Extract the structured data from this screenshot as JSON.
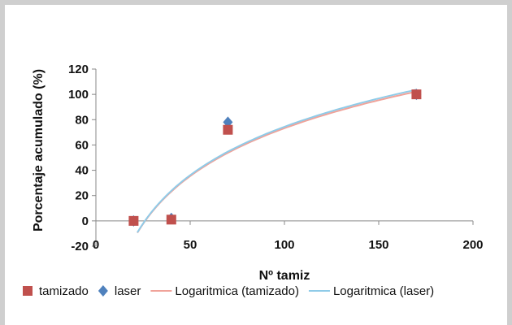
{
  "chart_data": {
    "type": "scatter",
    "xlabel": "Nº tamiz",
    "ylabel": "Porcentaje acumulado (%)",
    "xlim": [
      0,
      200
    ],
    "ylim": [
      -20,
      120
    ],
    "xticks": [
      0,
      50,
      100,
      150,
      200
    ],
    "yticks": [
      -20,
      0,
      20,
      40,
      60,
      80,
      100,
      120
    ],
    "grid": false,
    "legend_position": "bottom",
    "series": [
      {
        "name": "tamizado",
        "marker": "square",
        "color": "#c0504d",
        "points": [
          {
            "x": 20,
            "y": 0
          },
          {
            "x": 40,
            "y": 1
          },
          {
            "x": 70,
            "y": 72
          },
          {
            "x": 170,
            "y": 100
          }
        ]
      },
      {
        "name": "laser",
        "marker": "diamond",
        "color": "#4f81bd",
        "points": [
          {
            "x": 20,
            "y": 0
          },
          {
            "x": 40,
            "y": 2
          },
          {
            "x": 70,
            "y": 78
          },
          {
            "x": 170,
            "y": 100
          }
        ]
      },
      {
        "name": "Logaritmica (tamizado)",
        "type": "trendline",
        "color": "#f0a39a",
        "x_range": [
          22,
          170
        ],
        "model": "logarithmic",
        "a": 54.6,
        "b": -178.2
      },
      {
        "name": "Logaritmica (laser)",
        "type": "trendline",
        "color": "#8fcbe8",
        "x_range": [
          22,
          170
        ],
        "model": "logarithmic",
        "a": 55.2,
        "b": -179.8
      }
    ]
  }
}
